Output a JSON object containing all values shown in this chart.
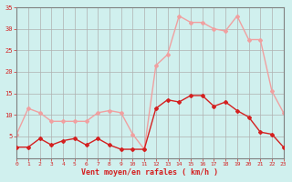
{
  "hours": [
    0,
    1,
    2,
    3,
    4,
    5,
    6,
    7,
    8,
    9,
    10,
    11,
    12,
    13,
    14,
    15,
    16,
    17,
    18,
    19,
    20,
    21,
    22,
    23
  ],
  "wind_avg": [
    2.5,
    2.5,
    4.5,
    3,
    4,
    4.5,
    3,
    4.5,
    3,
    2,
    2,
    2,
    11.5,
    13.5,
    13,
    14.5,
    14.5,
    12,
    13,
    11,
    9.5,
    6,
    5.5,
    2.5
  ],
  "wind_gust": [
    5.5,
    11.5,
    10.5,
    8.5,
    8.5,
    8.5,
    8.5,
    10.5,
    11,
    10.5,
    5.5,
    2,
    21.5,
    24,
    33,
    31.5,
    31.5,
    30,
    29.5,
    33,
    27.5,
    27.5,
    15.5,
    10.5
  ],
  "avg_color": "#d42020",
  "gust_color": "#f0a0a0",
  "bg_color": "#d0f0ee",
  "grid_color": "#b0b0b0",
  "spine_color": "#808080",
  "axis_label_color": "#d42020",
  "xlabel": "Vent moyen/en rafales ( km/h )",
  "ylim": [
    0,
    35
  ],
  "yticks": [
    0,
    5,
    10,
    15,
    20,
    25,
    30,
    35
  ]
}
